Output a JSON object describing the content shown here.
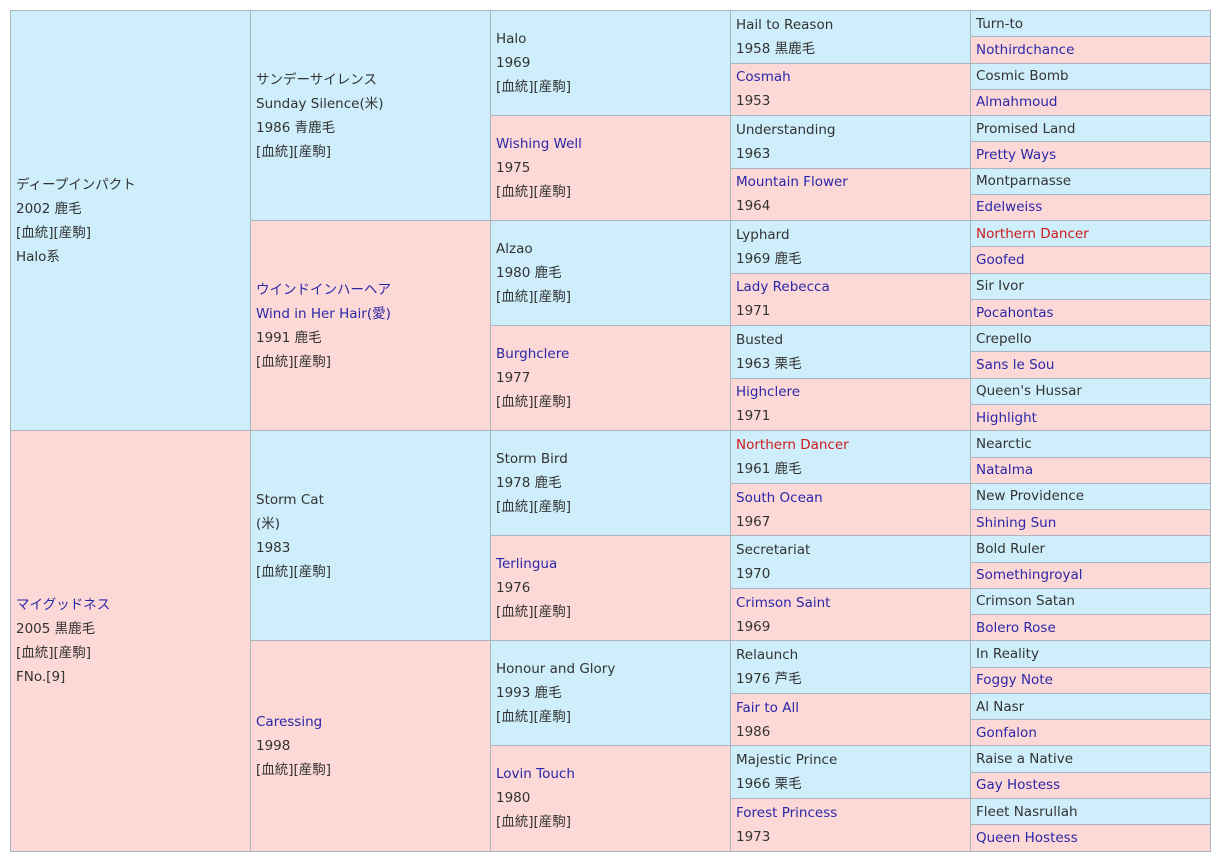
{
  "horse": {
    "name": "ディープインパクト",
    "line1": "2002 鹿毛",
    "line2": "[血統][産駒]",
    "line3": "Halo系"
  },
  "dam": {
    "name": "マイグッドネス",
    "line1": "2005 黒鹿毛",
    "line2": "[血統][産駒]",
    "line3": "FNo.[9]"
  },
  "g2": [
    {
      "lines": [
        "サンデーサイレンス",
        "Sunday Silence(米)",
        "1986 青鹿毛",
        "[血統][産駒]"
      ]
    },
    {
      "lines": [
        "ウインドインハーヘア",
        "Wind in Her Hair(愛)",
        "1991 鹿毛",
        "[血統][産駒]"
      ]
    },
    {
      "lines": [
        "Storm Cat",
        "(米)",
        "1983",
        "[血統][産駒]"
      ]
    },
    {
      "lines": [
        "Caressing",
        "1998",
        "[血統][産駒]"
      ]
    }
  ],
  "g3": [
    {
      "lines": [
        "Halo",
        "1969",
        "[血統][産駒]"
      ]
    },
    {
      "lines": [
        "Wishing Well",
        "1975",
        "[血統][産駒]"
      ]
    },
    {
      "lines": [
        "Alzao",
        "1980 鹿毛",
        "[血統][産駒]"
      ]
    },
    {
      "lines": [
        "Burghclere",
        "1977",
        "[血統][産駒]"
      ]
    },
    {
      "lines": [
        "Storm Bird",
        "1978 鹿毛",
        "[血統][産駒]"
      ]
    },
    {
      "lines": [
        "Terlingua",
        "1976",
        "[血統][産駒]"
      ]
    },
    {
      "lines": [
        "Honour and Glory",
        "1993 鹿毛",
        "[血統][産駒]"
      ]
    },
    {
      "lines": [
        "Lovin Touch",
        "1980",
        "[血統][産駒]"
      ]
    }
  ],
  "g4": [
    {
      "name": "Hail to Reason",
      "year": "1958 黒鹿毛"
    },
    {
      "name": "Cosmah",
      "year": "1953"
    },
    {
      "name": "Understanding",
      "year": "1963"
    },
    {
      "name": "Mountain Flower",
      "year": "1964"
    },
    {
      "name": "Lyphard",
      "year": "1969 鹿毛"
    },
    {
      "name": "Lady Rebecca",
      "year": "1971"
    },
    {
      "name": "Busted",
      "year": "1963 栗毛"
    },
    {
      "name": "Highclere",
      "year": "1971"
    },
    {
      "name": "Northern Dancer",
      "year": "1961 鹿毛"
    },
    {
      "name": "South Ocean",
      "year": "1967"
    },
    {
      "name": "Secretariat",
      "year": "1970"
    },
    {
      "name": "Crimson Saint",
      "year": "1969"
    },
    {
      "name": "Relaunch",
      "year": "1976 芦毛"
    },
    {
      "name": "Fair to All",
      "year": "1986"
    },
    {
      "name": "Majestic Prince",
      "year": "1966 栗毛"
    },
    {
      "name": "Forest Princess",
      "year": "1973"
    }
  ],
  "g5": [
    "Turn-to",
    "Nothirdchance",
    "Cosmic Bomb",
    "Almahmoud",
    "Promised Land",
    "Pretty Ways",
    "Montparnasse",
    "Edelweiss",
    "Northern Dancer",
    "Goofed",
    "Sir Ivor",
    "Pocahontas",
    "Crepello",
    "Sans le Sou",
    "Queen's Hussar",
    "Highlight",
    "Nearctic",
    "Natalma",
    "New Providence",
    "Shining Sun",
    "Bold Ruler",
    "Somethingroyal",
    "Crimson Satan",
    "Bolero Rose",
    "In Reality",
    "Foggy Note",
    "Al Nasr",
    "Gonfalon",
    "Raise a Native",
    "Gay Hostess",
    "Fleet Nasrullah",
    "Queen Hostess"
  ],
  "colors": {
    "male_bg": "#cdeefa",
    "female_bg": "#fcd9d6",
    "link": "#2b27a8",
    "inbreed": "#d01a1a",
    "border": "#a9b4bd"
  }
}
